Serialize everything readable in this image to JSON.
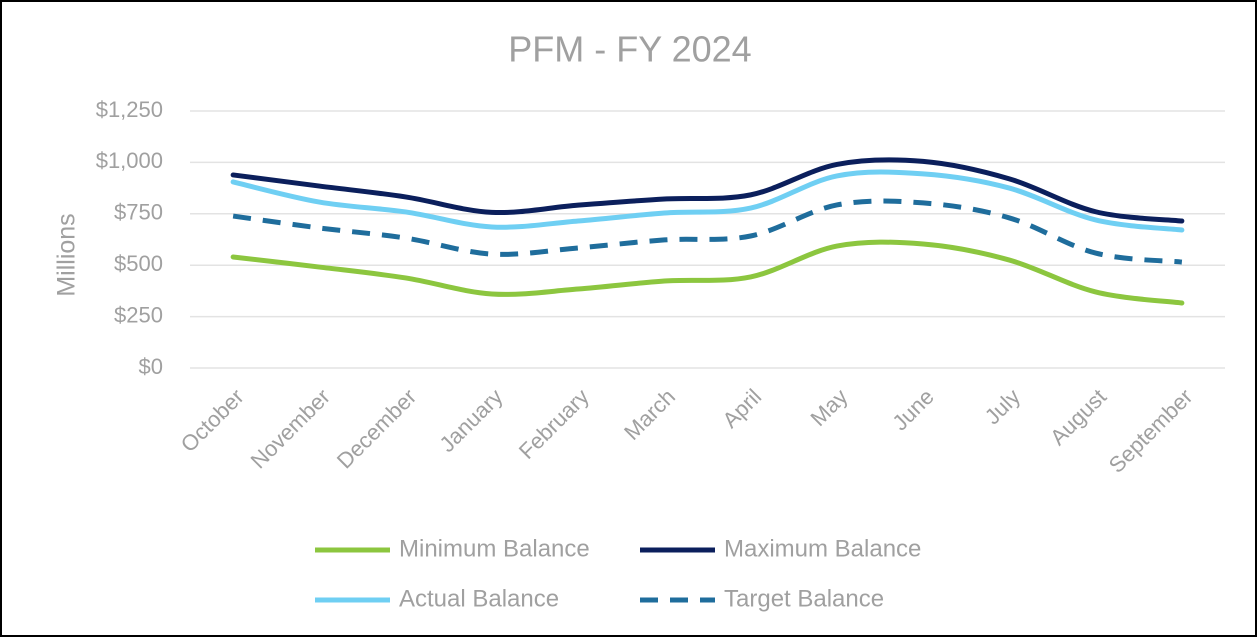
{
  "chart_data": {
    "type": "line",
    "title": "PFM - FY 2024",
    "y_label": "Millions",
    "categories": [
      "October",
      "November",
      "December",
      "January",
      "February",
      "March",
      "April",
      "May",
      "June",
      "July",
      "August",
      "September"
    ],
    "series": [
      {
        "name": "Minimum Balance",
        "color": "#8cc63f",
        "dash": false,
        "values": [
          540,
          491,
          438,
          360,
          384,
          423,
          443,
          593,
          603,
          525,
          370,
          316
        ]
      },
      {
        "name": "Maximum Balance",
        "color": "#0b1f5c",
        "dash": false,
        "values": [
          939,
          885,
          832,
          757,
          792,
          822,
          842,
          990,
          1005,
          920,
          760,
          715
        ]
      },
      {
        "name": "Actual Balance",
        "color": "#6fcff3",
        "dash": false,
        "values": [
          905,
          807,
          759,
          686,
          715,
          754,
          778,
          934,
          944,
          875,
          720,
          671
        ]
      },
      {
        "name": "Target Balance",
        "color": "#1f6d9c",
        "dash": true,
        "values": [
          739,
          681,
          632,
          554,
          584,
          623,
          642,
          793,
          803,
          730,
          559,
          515
        ]
      }
    ],
    "ylim": [
      0,
      1250
    ],
    "yticks": [
      {
        "value": 0,
        "label": "$0"
      },
      {
        "value": 250,
        "label": "$250"
      },
      {
        "value": 500,
        "label": "$500"
      },
      {
        "value": 750,
        "label": "$750"
      },
      {
        "value": 1000,
        "label": "$1,000"
      },
      {
        "value": 1250,
        "label": "$1,250"
      }
    ],
    "grid": true,
    "legend": "bottom",
    "smooth": true
  }
}
